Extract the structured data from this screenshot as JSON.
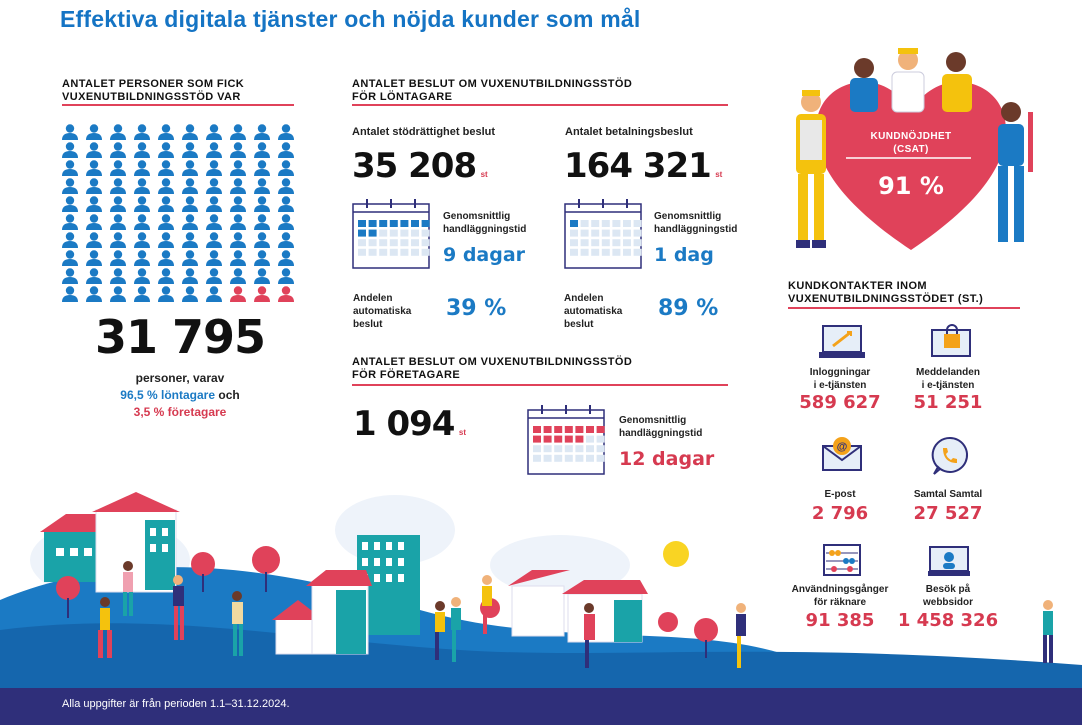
{
  "title": "Effektiva digitala tjänster och nöjda kunder som mål",
  "people_section": {
    "heading_line1": "ANTALET PERSONER SOM FICK",
    "heading_line2": "VUXENUTBILDNINGSSTÖD VAR",
    "total": "31 795",
    "text_line1": "personer, varav",
    "employee_share": "96,5 % löntagare",
    "och": "och",
    "entrepreneur_share": "3,5 % företagare",
    "colors": {
      "employee": "#1b7ac4",
      "entrepreneur": "#e0425a"
    },
    "icon_counts": {
      "employee": 97,
      "entrepreneur": 3
    }
  },
  "employee_decisions": {
    "heading_line1": "ANTALET BESLUT OM VUXENUTBILDNINGSSTÖD",
    "heading_line2": "FÖR LÖNTAGARE",
    "entitlement": {
      "label": "Antalet stödrättighet beslut",
      "value": "35 208",
      "unit": "st",
      "time_label_line1": "Genomsnittlig",
      "time_label_line2": "handläggningstid",
      "time_value": "9 dagar",
      "auto_label_line1": "Andelen",
      "auto_label_line2": "automatiska",
      "auto_label_line3": "beslut",
      "auto_value": "39 %",
      "days_filled": 9
    },
    "payment": {
      "label": "Antalet betalningsbeslut",
      "value": "164 321",
      "unit": "st",
      "time_label_line1": "Genomsnittlig",
      "time_label_line2": "handläggningstid",
      "time_value": "1 dag",
      "auto_label_line1": "Andelen",
      "auto_label_line2": "automatiska",
      "auto_label_line3": "beslut",
      "auto_value": "89 %",
      "days_filled": 1
    }
  },
  "entrepreneur_decisions": {
    "heading_line1": "ANTALET BESLUT OM VUXENUTBILDNINGSSTÖD",
    "heading_line2": "FÖR FÖRETAGARE",
    "value": "1 094",
    "unit": "st",
    "time_label_line1": "Genomsnittlig",
    "time_label_line2": "handläggningstid",
    "time_value": "12 dagar",
    "days_filled": 12
  },
  "csat": {
    "label_line1": "KUNDNÖJDHET",
    "label_line2": "(CSAT)",
    "value": "91 %"
  },
  "contacts": {
    "heading_line1": "KUNDKONTAKTER INOM",
    "heading_line2": "VUXENUTBILDNINGSSTÖDET (ST.)",
    "items": [
      {
        "icon": "laptop-login-icon",
        "label_line1": "Inloggningar",
        "label_line2": "i e-tjänsten",
        "value": "589 627"
      },
      {
        "icon": "message-lock-icon",
        "label_line1": "Meddelanden",
        "label_line2": "i e-tjänsten",
        "value": "51 251"
      },
      {
        "icon": "email-icon",
        "label_line1": "E-post",
        "label_line2": "",
        "value": "2 796"
      },
      {
        "icon": "phone-call-icon",
        "label_line1": "Samtal Samtal",
        "label_line2": "",
        "value": "27 527"
      },
      {
        "icon": "abacus-icon",
        "label_line1": "Användningsgånger",
        "label_line2": "för räknare",
        "value": "91 385"
      },
      {
        "icon": "website-visit-icon",
        "label_line1": "Besök på",
        "label_line2": "webbsidor",
        "value": "1 458 326"
      }
    ]
  },
  "footer": {
    "text": "Alla uppgifter är från perioden 1.1–31.12.2024."
  }
}
